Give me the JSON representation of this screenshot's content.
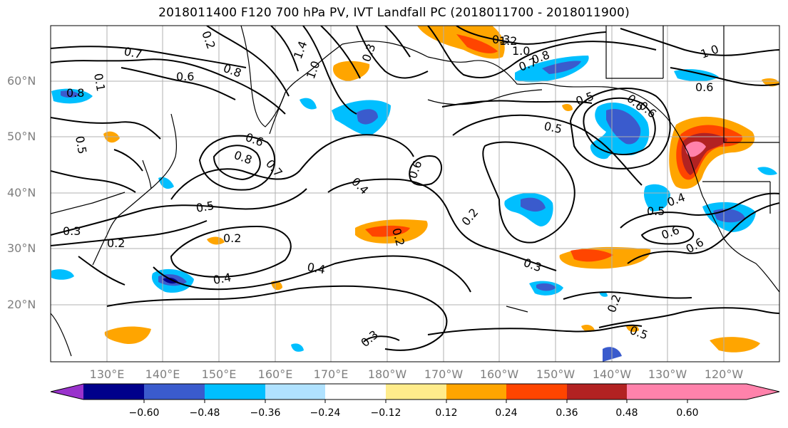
{
  "title": "2018011400 F120 700 hPa PV, IVT Landfall PC (2018011700 - 2018011900)",
  "lat_labels": [
    "60°N",
    "50°N",
    "40°N",
    "30°N",
    "20°N"
  ],
  "lon_labels": [
    "130°E",
    "140°E",
    "150°E",
    "160°E",
    "170°E",
    "180°W",
    "170°W",
    "160°W",
    "150°W",
    "140°W",
    "130°W",
    "120°W"
  ],
  "colorbar": {
    "colors": [
      "#9932CC",
      "#00008B",
      "#3A5BCD",
      "#00BFFF",
      "#B0E2FF",
      "#FFFFFF",
      "#FFEC8B",
      "#FFA500",
      "#FF4500",
      "#B22222",
      "#FF82AB"
    ],
    "tick_labels": [
      "−0.60",
      "−0.48",
      "−0.36",
      "−0.24",
      "−0.12",
      "0.12",
      "0.24",
      "0.36",
      "0.48",
      "0.60"
    ]
  },
  "contour_labels": [
    "0.7",
    "0.8",
    "0.8",
    "0.6",
    "0.5",
    "0.2",
    "0.1",
    "1.4",
    "1.0",
    "0.3",
    "1.2",
    "1.0",
    "0.8",
    "0.7",
    "0.5",
    "0.5",
    "0.6",
    "0.6",
    "1.0",
    "0.6",
    "0.6",
    "0.8",
    "0.7",
    "0.5",
    "0.4",
    "0.5",
    "0.6",
    "0.6",
    "0.2",
    "0.3",
    "0.4",
    "0.4",
    "0.3",
    "0.2",
    "0.2",
    "0.3",
    "0.2",
    "0.5",
    "0.4",
    "0.6",
    "0.3",
    "0.2"
  ]
}
